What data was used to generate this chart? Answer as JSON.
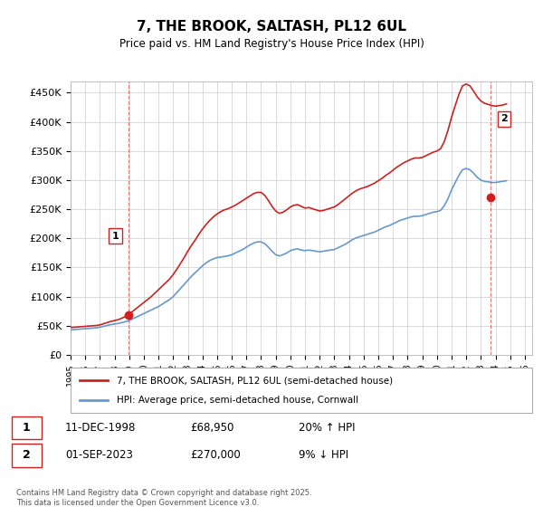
{
  "title": "7, THE BROOK, SALTASH, PL12 6UL",
  "subtitle": "Price paid vs. HM Land Registry's House Price Index (HPI)",
  "ylabel_ticks": [
    "£0",
    "£50K",
    "£100K",
    "£150K",
    "£200K",
    "£250K",
    "£300K",
    "£350K",
    "£400K",
    "£450K"
  ],
  "ytick_values": [
    0,
    50000,
    100000,
    150000,
    200000,
    250000,
    300000,
    350000,
    400000,
    450000
  ],
  "ylim": [
    0,
    470000
  ],
  "xlim_start": 1995.0,
  "xlim_end": 2026.5,
  "xticks": [
    1995,
    1996,
    1997,
    1998,
    1999,
    2000,
    2001,
    2002,
    2003,
    2004,
    2005,
    2006,
    2007,
    2008,
    2009,
    2010,
    2011,
    2012,
    2013,
    2014,
    2015,
    2016,
    2017,
    2018,
    2019,
    2020,
    2021,
    2022,
    2023,
    2024,
    2025,
    2026
  ],
  "hpi_color": "#6699cc",
  "price_color": "#cc2222",
  "vline_color": "#cc2222",
  "vline_style": "--",
  "vline_alpha": 0.6,
  "grid_color": "#cccccc",
  "background_color": "#ffffff",
  "point1_x": 1998.95,
  "point1_y": 68950,
  "point1_label": "1",
  "point2_x": 2023.67,
  "point2_y": 270000,
  "point2_label": "2",
  "legend_line1": "7, THE BROOK, SALTASH, PL12 6UL (semi-detached house)",
  "legend_line2": "HPI: Average price, semi-detached house, Cornwall",
  "table_row1": [
    "1",
    "11-DEC-1998",
    "£68,950",
    "20% ↑ HPI"
  ],
  "table_row2": [
    "2",
    "01-SEP-2023",
    "£270,000",
    "9% ↓ HPI"
  ],
  "footer": "Contains HM Land Registry data © Crown copyright and database right 2025.\nThis data is licensed under the Open Government Licence v3.0.",
  "hpi_data_x": [
    1995.0,
    1995.25,
    1995.5,
    1995.75,
    1996.0,
    1996.25,
    1996.5,
    1996.75,
    1997.0,
    1997.25,
    1997.5,
    1997.75,
    1998.0,
    1998.25,
    1998.5,
    1998.75,
    1999.0,
    1999.25,
    1999.5,
    1999.75,
    2000.0,
    2000.25,
    2000.5,
    2000.75,
    2001.0,
    2001.25,
    2001.5,
    2001.75,
    2002.0,
    2002.25,
    2002.5,
    2002.75,
    2003.0,
    2003.25,
    2003.5,
    2003.75,
    2004.0,
    2004.25,
    2004.5,
    2004.75,
    2005.0,
    2005.25,
    2005.5,
    2005.75,
    2006.0,
    2006.25,
    2006.5,
    2006.75,
    2007.0,
    2007.25,
    2007.5,
    2007.75,
    2008.0,
    2008.25,
    2008.5,
    2008.75,
    2009.0,
    2009.25,
    2009.5,
    2009.75,
    2010.0,
    2010.25,
    2010.5,
    2010.75,
    2011.0,
    2011.25,
    2011.5,
    2011.75,
    2012.0,
    2012.25,
    2012.5,
    2012.75,
    2013.0,
    2013.25,
    2013.5,
    2013.75,
    2014.0,
    2014.25,
    2014.5,
    2014.75,
    2015.0,
    2015.25,
    2015.5,
    2015.75,
    2016.0,
    2016.25,
    2016.5,
    2016.75,
    2017.0,
    2017.25,
    2017.5,
    2017.75,
    2018.0,
    2018.25,
    2018.5,
    2018.75,
    2019.0,
    2019.25,
    2019.5,
    2019.75,
    2020.0,
    2020.25,
    2020.5,
    2020.75,
    2021.0,
    2021.25,
    2021.5,
    2021.75,
    2022.0,
    2022.25,
    2022.5,
    2022.75,
    2023.0,
    2023.25,
    2023.5,
    2023.75,
    2024.0,
    2024.25,
    2024.5,
    2024.75
  ],
  "hpi_data_y": [
    43000,
    43500,
    44000,
    44500,
    45000,
    45500,
    46000,
    46500,
    47500,
    49000,
    50500,
    52000,
    53000,
    54000,
    55500,
    57000,
    59000,
    62000,
    65000,
    68000,
    71000,
    74000,
    77000,
    80000,
    83000,
    87000,
    91000,
    95000,
    100000,
    107000,
    114000,
    121000,
    128000,
    135000,
    141000,
    147000,
    153000,
    158000,
    162000,
    165000,
    167000,
    168000,
    169000,
    170000,
    172000,
    175000,
    178000,
    181000,
    185000,
    189000,
    192000,
    194000,
    194000,
    191000,
    185000,
    178000,
    172000,
    170000,
    172000,
    175000,
    179000,
    181000,
    182000,
    180000,
    179000,
    180000,
    179000,
    178000,
    177000,
    178000,
    179000,
    180000,
    181000,
    184000,
    187000,
    190000,
    194000,
    198000,
    201000,
    203000,
    205000,
    207000,
    209000,
    211000,
    214000,
    217000,
    220000,
    222000,
    225000,
    228000,
    231000,
    233000,
    235000,
    237000,
    238000,
    238000,
    239000,
    241000,
    243000,
    245000,
    246000,
    248000,
    256000,
    268000,
    283000,
    296000,
    308000,
    318000,
    320000,
    318000,
    312000,
    305000,
    300000,
    298000,
    297000,
    296000,
    296000,
    297000,
    298000,
    299000
  ],
  "price_data_x": [
    1995.0,
    1995.25,
    1995.5,
    1995.75,
    1996.0,
    1996.25,
    1996.5,
    1996.75,
    1997.0,
    1997.25,
    1997.5,
    1997.75,
    1998.0,
    1998.25,
    1998.5,
    1998.75,
    1999.0,
    1999.25,
    1999.5,
    1999.75,
    2000.0,
    2000.25,
    2000.5,
    2000.75,
    2001.0,
    2001.25,
    2001.5,
    2001.75,
    2002.0,
    2002.25,
    2002.5,
    2002.75,
    2003.0,
    2003.25,
    2003.5,
    2003.75,
    2004.0,
    2004.25,
    2004.5,
    2004.75,
    2005.0,
    2005.25,
    2005.5,
    2005.75,
    2006.0,
    2006.25,
    2006.5,
    2006.75,
    2007.0,
    2007.25,
    2007.5,
    2007.75,
    2008.0,
    2008.25,
    2008.5,
    2008.75,
    2009.0,
    2009.25,
    2009.5,
    2009.75,
    2010.0,
    2010.25,
    2010.5,
    2010.75,
    2011.0,
    2011.25,
    2011.5,
    2011.75,
    2012.0,
    2012.25,
    2012.5,
    2012.75,
    2013.0,
    2013.25,
    2013.5,
    2013.75,
    2014.0,
    2014.25,
    2014.5,
    2014.75,
    2015.0,
    2015.25,
    2015.5,
    2015.75,
    2016.0,
    2016.25,
    2016.5,
    2016.75,
    2017.0,
    2017.25,
    2017.5,
    2017.75,
    2018.0,
    2018.25,
    2018.5,
    2018.75,
    2019.0,
    2019.25,
    2019.5,
    2019.75,
    2020.0,
    2020.25,
    2020.5,
    2020.75,
    2021.0,
    2021.25,
    2021.5,
    2021.75,
    2022.0,
    2022.25,
    2022.5,
    2022.75,
    2023.0,
    2023.25,
    2023.5,
    2023.75,
    2024.0,
    2024.25,
    2024.5,
    2024.75
  ],
  "price_data_y": [
    47000,
    47500,
    48000,
    48500,
    49000,
    49500,
    50000,
    50500,
    51500,
    53500,
    55500,
    57500,
    59000,
    60500,
    63000,
    66000,
    70000,
    75000,
    80000,
    85000,
    90000,
    95000,
    100000,
    106000,
    112000,
    118000,
    124000,
    130000,
    138000,
    147000,
    157000,
    167000,
    178000,
    188000,
    197000,
    207000,
    216000,
    224000,
    231000,
    237000,
    242000,
    246000,
    249000,
    251000,
    254000,
    257000,
    261000,
    265000,
    269000,
    273000,
    277000,
    279000,
    279000,
    274000,
    265000,
    255000,
    247000,
    243000,
    245000,
    249000,
    254000,
    257000,
    258000,
    255000,
    252000,
    253000,
    251000,
    249000,
    247000,
    248000,
    250000,
    252000,
    254000,
    258000,
    263000,
    268000,
    273000,
    278000,
    282000,
    285000,
    287000,
    289000,
    292000,
    295000,
    299000,
    303000,
    308000,
    312000,
    317000,
    322000,
    326000,
    330000,
    333000,
    336000,
    338000,
    338000,
    339000,
    342000,
    345000,
    348000,
    350000,
    354000,
    366000,
    385000,
    408000,
    428000,
    447000,
    462000,
    465000,
    462000,
    453000,
    443000,
    436000,
    432000,
    430000,
    428000,
    427000,
    428000,
    429000,
    431000
  ]
}
